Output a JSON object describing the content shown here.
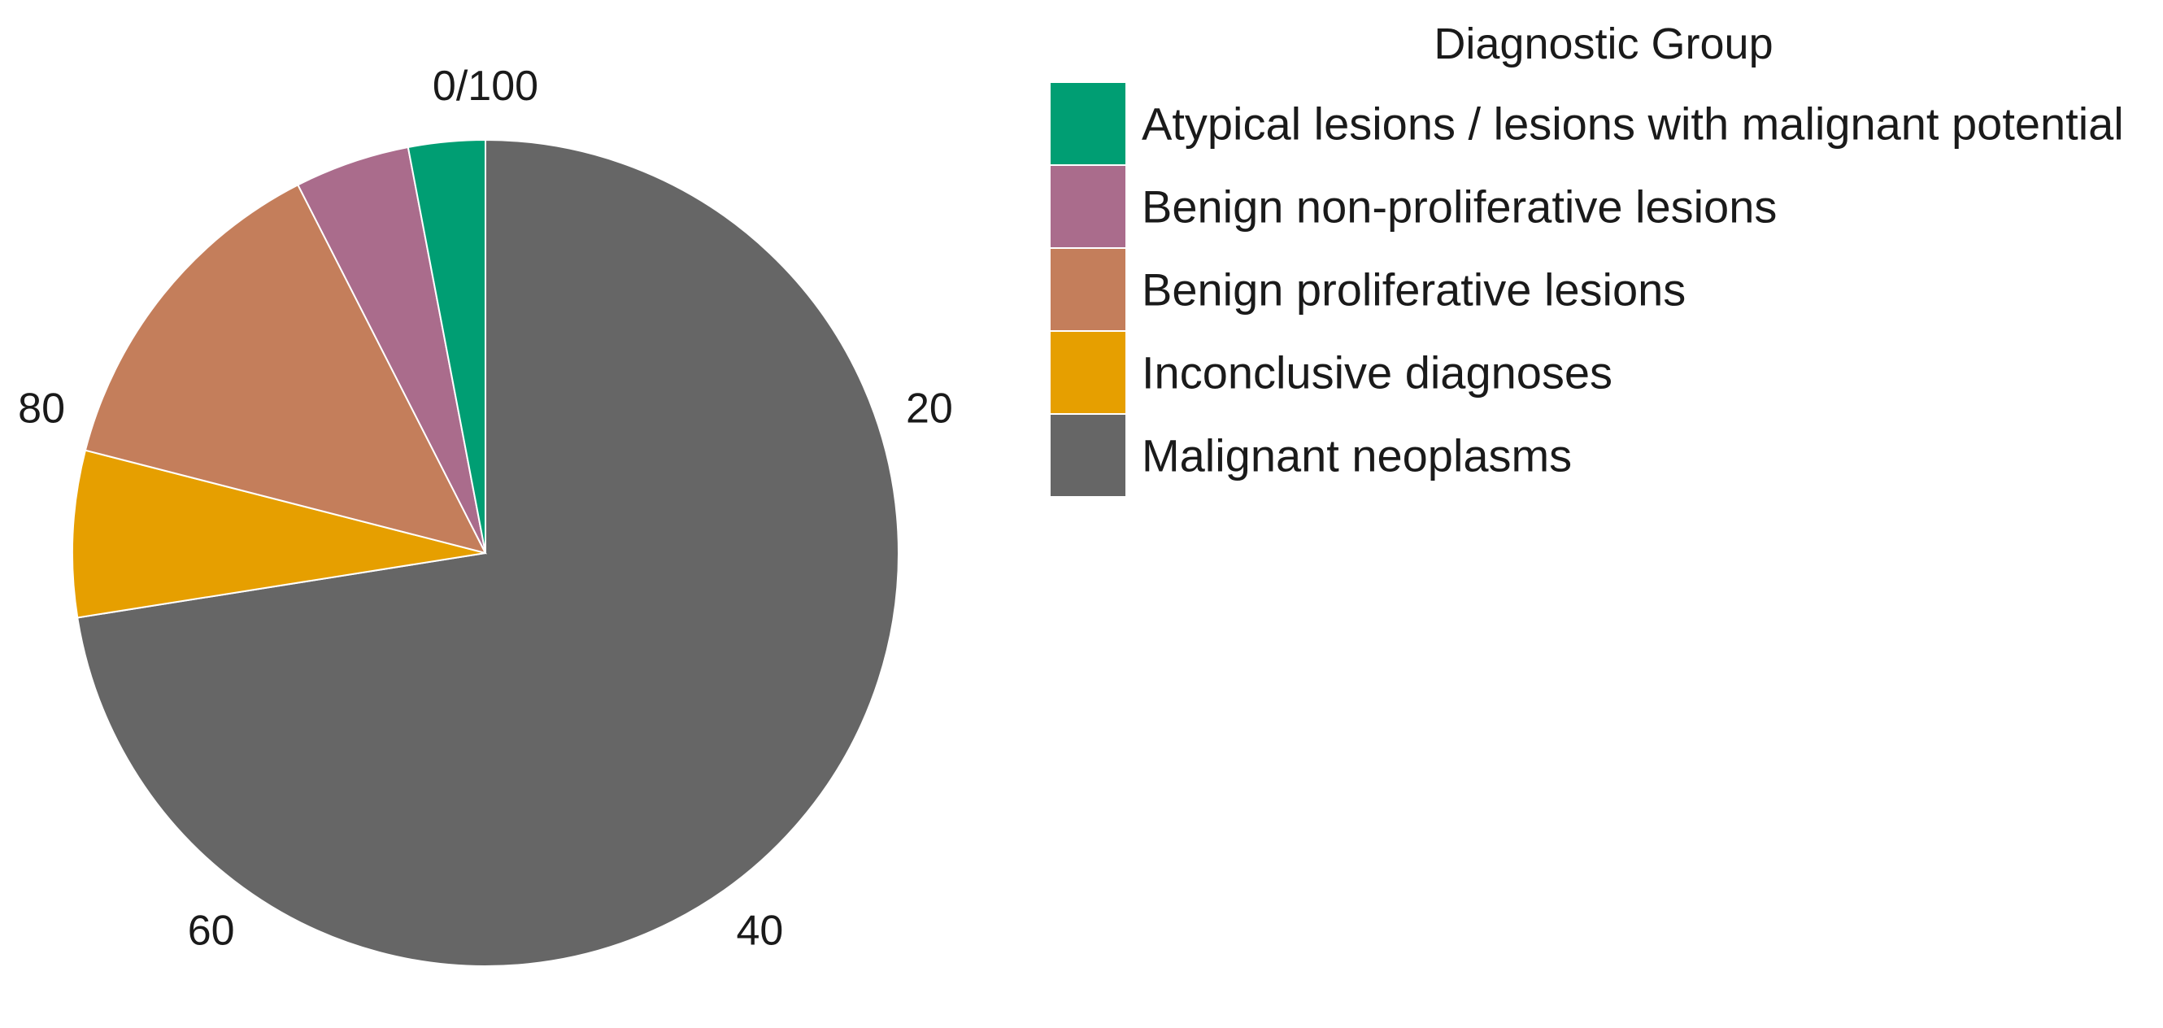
{
  "chart_data": {
    "type": "pie",
    "title": "",
    "direction": "clockwise",
    "start": "top",
    "tick_labels": [
      "0/100",
      "20",
      "40",
      "60",
      "80"
    ],
    "legend": {
      "title": "Diagnostic Group",
      "placement": "right"
    },
    "slices": [
      {
        "label": "Malignant neoplasms",
        "value": 72.5,
        "color": "#666666"
      },
      {
        "label": "Inconclusive diagnoses",
        "value": 6.5,
        "color": "#E69F00"
      },
      {
        "label": "Benign proliferative lesions",
        "value": 13.5,
        "color": "#C47E5B"
      },
      {
        "label": "Benign non-proliferative lesions",
        "value": 4.5,
        "color": "#AA6C8C"
      },
      {
        "label": "Atypical lesions / lesions with malignant potential",
        "value": 3.0,
        "color": "#009E73"
      }
    ],
    "legend_order": [
      "Atypical lesions / lesions with malignant potential",
      "Benign non-proliferative lesions",
      "Benign proliferative lesions",
      "Inconclusive diagnoses",
      "Malignant neoplasms"
    ]
  }
}
